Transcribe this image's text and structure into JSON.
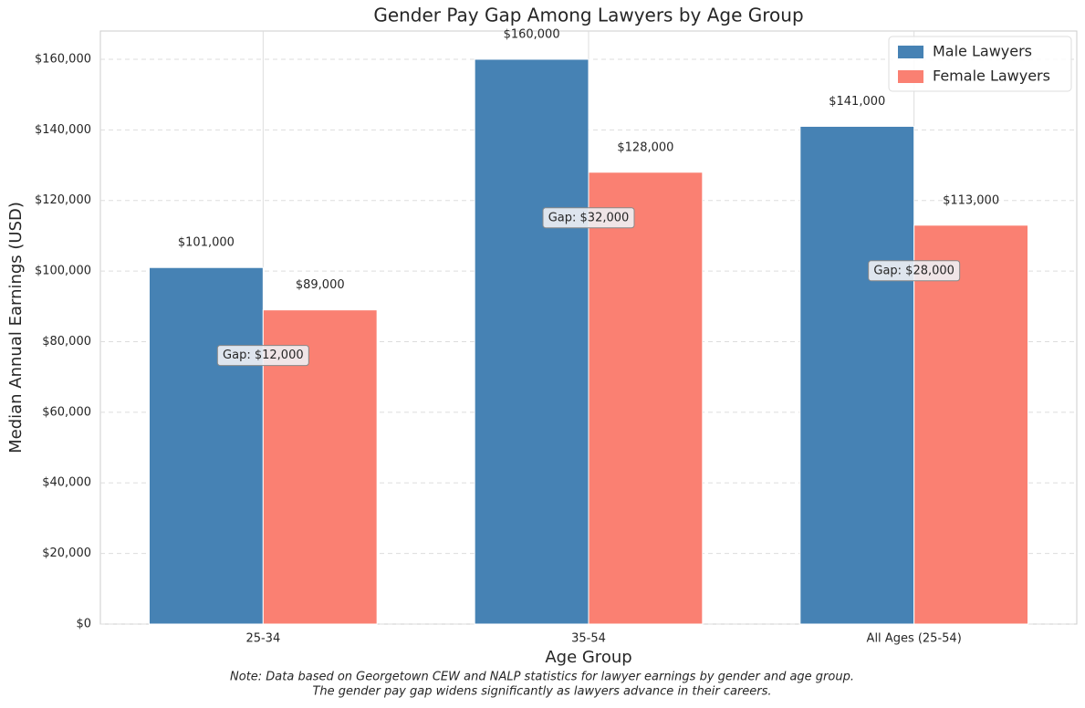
{
  "chart_data": {
    "type": "bar",
    "title": "Gender Pay Gap Among Lawyers by Age Group",
    "x_label": "Age Group",
    "y_label": "Median Annual Earnings (USD)",
    "categories": [
      "25-34",
      "35-54",
      "All Ages (25-54)"
    ],
    "series": [
      {
        "name": "Male Lawyers",
        "color": "#4682b4",
        "values": [
          101000,
          160000,
          141000
        ],
        "value_labels": [
          "$101,000",
          "$160,000",
          "$141,000"
        ]
      },
      {
        "name": "Female Lawyers",
        "color": "#fa8072",
        "values": [
          89000,
          128000,
          113000
        ],
        "value_labels": [
          "$89,000",
          "$128,000",
          "$113,000"
        ]
      }
    ],
    "annotations": [
      "Gap: $12,000",
      "Gap: $32,000",
      "Gap: $28,000"
    ],
    "ylim": [
      0,
      168000
    ],
    "yticks": [
      {
        "value": 0,
        "label": "$0"
      },
      {
        "value": 20000,
        "label": "$20,000"
      },
      {
        "value": 40000,
        "label": "$40,000"
      },
      {
        "value": 60000,
        "label": "$60,000"
      },
      {
        "value": 80000,
        "label": "$80,000"
      },
      {
        "value": 100000,
        "label": "$100,000"
      },
      {
        "value": 120000,
        "label": "$120,000"
      },
      {
        "value": 140000,
        "label": "$140,000"
      },
      {
        "value": 160000,
        "label": "$160,000"
      }
    ],
    "grid": true,
    "legend": "upper right",
    "notes": [
      "Note: Data based on Georgetown CEW and NALP statistics for lawyer earnings by gender and age group.",
      "The gender pay gap widens significantly as lawyers advance in their careers."
    ]
  }
}
